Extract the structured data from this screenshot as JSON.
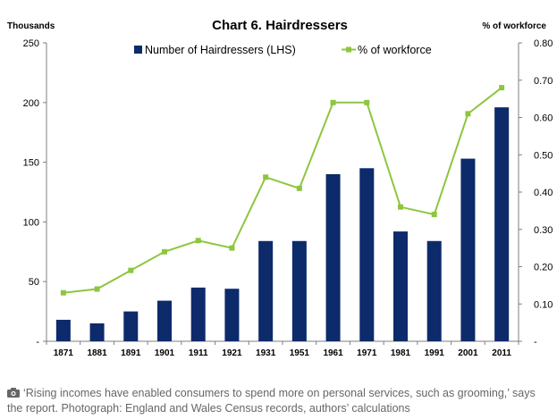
{
  "chart_data": {
    "type": "bar",
    "title": "Chart 6. Hairdressers",
    "left_axis_title": "Thousands",
    "right_axis_title": "% of workforce",
    "categories": [
      "1871",
      "1881",
      "1891",
      "1901",
      "1911",
      "1921",
      "1931",
      "1951",
      "1961",
      "1971",
      "1981",
      "1991",
      "2001",
      "2011"
    ],
    "left_ylim": [
      0,
      250
    ],
    "left_ticks": [
      "-",
      "50",
      "100",
      "150",
      "200",
      "250"
    ],
    "left_tick_values": [
      0,
      50,
      100,
      150,
      200,
      250
    ],
    "right_ylim": [
      0,
      0.8
    ],
    "right_ticks": [
      "-",
      "0.10",
      "0.20",
      "0.30",
      "0.40",
      "0.50",
      "0.60",
      "0.70",
      "0.80"
    ],
    "right_tick_values": [
      0,
      0.1,
      0.2,
      0.3,
      0.4,
      0.5,
      0.6,
      0.7,
      0.8
    ],
    "series": [
      {
        "name": "Number of Hairdressers (LHS)",
        "type": "bar",
        "axis": "left",
        "color": "#0d2a6b",
        "values": [
          18,
          15,
          25,
          34,
          45,
          44,
          84,
          84,
          140,
          145,
          92,
          84,
          153,
          196
        ]
      },
      {
        "name": "% of workforce",
        "type": "line",
        "axis": "right",
        "color": "#8dc63f",
        "values": [
          0.13,
          0.14,
          0.19,
          0.24,
          0.27,
          0.25,
          0.44,
          0.41,
          0.64,
          0.64,
          0.36,
          0.34,
          0.61,
          0.68
        ]
      }
    ],
    "legend_position": "top-center",
    "grid": false
  },
  "caption": {
    "icon": "camera-icon",
    "text": "‘Rising incomes have enabled consumers to spend more on personal services, such as grooming,’ says the report. Photograph: England and Wales Census records, authors’ calculations"
  }
}
